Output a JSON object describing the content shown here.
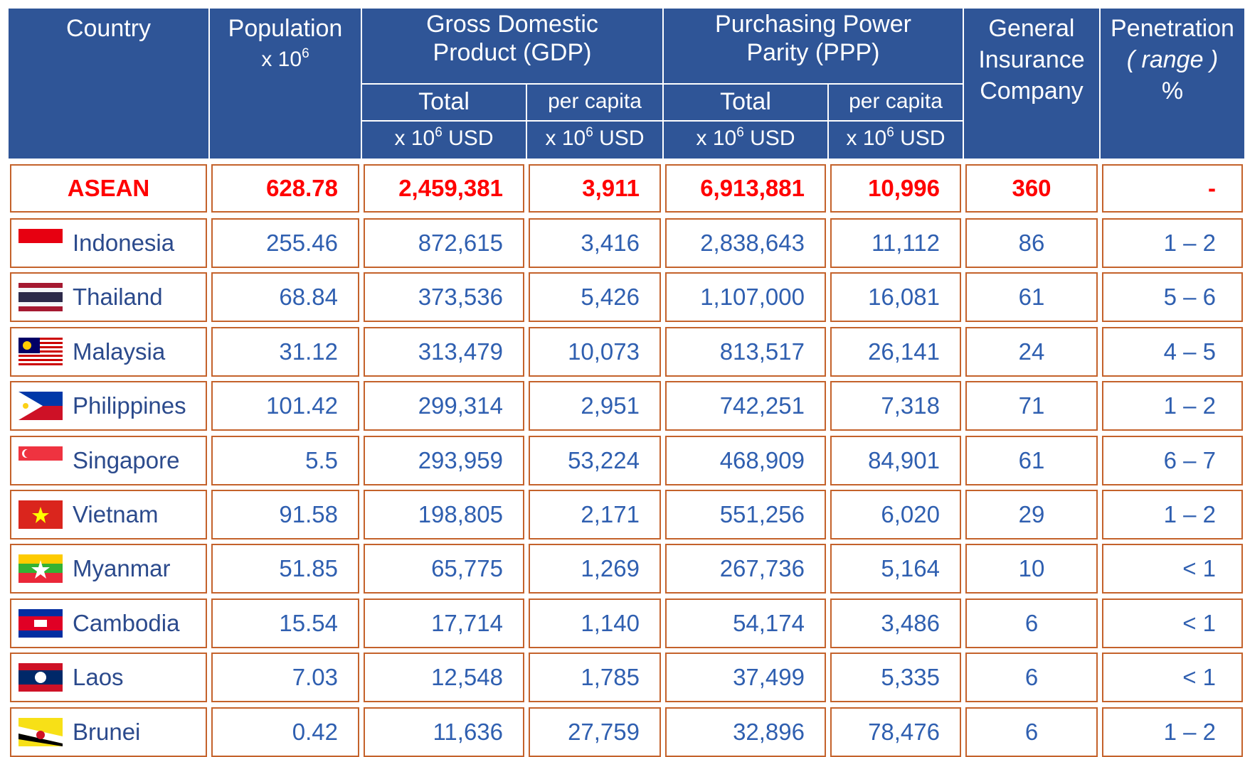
{
  "table": {
    "header": {
      "country": "Country",
      "population": {
        "title": "Population",
        "unit": {
          "base": "x 10",
          "exp": "6"
        }
      },
      "gdp": {
        "title": [
          "Gross Domestic",
          "Product (GDP)"
        ],
        "total": "Total",
        "per_capita": "per capita",
        "total_unit": {
          "base": "x 10",
          "exp": "6",
          "suffix": "USD"
        },
        "per_capita_unit": {
          "base": "x 10",
          "exp": "6",
          "suffix": "USD"
        }
      },
      "ppp": {
        "title": [
          "Purchasing Power",
          "Parity (PPP)"
        ],
        "total": "Total",
        "per_capita": "per capita",
        "total_unit": {
          "base": "x 10",
          "exp": "6",
          "suffix": "USD"
        },
        "per_capita_unit": {
          "base": "x 10",
          "exp": "6",
          "suffix": "USD"
        }
      },
      "insurance": [
        "General",
        "Insurance",
        "Company"
      ],
      "penetration": [
        "Penetration",
        "( range )",
        "%"
      ]
    },
    "total_row": [
      "ASEAN",
      "628.78",
      "2,459,381",
      "3,911",
      "6,913,881",
      "10,996",
      "360",
      "-"
    ],
    "rows": [
      [
        "Indonesia",
        "255.46",
        "872,615",
        "3,416",
        "2,838,643",
        "11,112",
        "86",
        "1 – 2"
      ],
      [
        "Thailand",
        "68.84",
        "373,536",
        "5,426",
        "1,107,000",
        "16,081",
        "61",
        "5 – 6"
      ],
      [
        "Malaysia",
        "31.12",
        "313,479",
        "10,073",
        "813,517",
        "26,141",
        "24",
        "4 – 5"
      ],
      [
        "Philippines",
        "101.42",
        "299,314",
        "2,951",
        "742,251",
        "7,318",
        "71",
        "1 – 2"
      ],
      [
        "Singapore",
        "5.5",
        "293,959",
        "53,224",
        "468,909",
        "84,901",
        "61",
        "6 – 7"
      ],
      [
        "Vietnam",
        "91.58",
        "198,805",
        "2,171",
        "551,256",
        "6,020",
        "29",
        "1 – 2"
      ],
      [
        "Myanmar",
        "51.85",
        "65,775",
        "1,269",
        "267,736",
        "5,164",
        "10",
        "< 1"
      ],
      [
        "Cambodia",
        "15.54",
        "17,714",
        "1,140",
        "54,174",
        "3,486",
        "6",
        "< 1"
      ],
      [
        "Laos",
        "7.03",
        "12,548",
        "1,785",
        "37,499",
        "5,335",
        "6",
        "< 1"
      ],
      [
        "Brunei",
        "0.42",
        "11,636",
        "27,759",
        "32,896",
        "78,476",
        "6",
        "1 – 2"
      ]
    ]
  }
}
